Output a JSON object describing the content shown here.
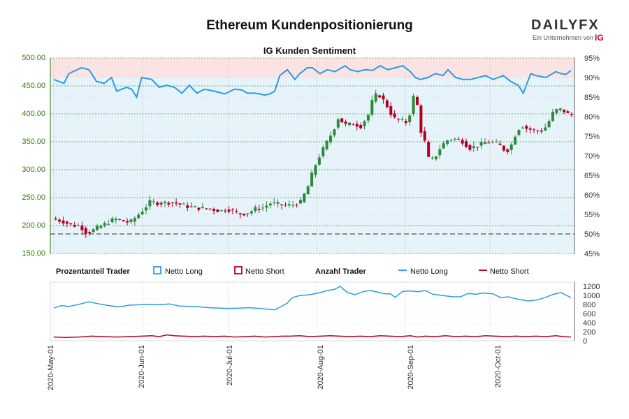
{
  "header": {
    "title": "Ethereum Kundenpositionierung",
    "logo_text": "DAILYFX",
    "logo_sub": "Ein Unternehmen von",
    "logo_ig": "IG"
  },
  "chart_data": [
    {
      "type": "candlestick",
      "title": "IG Kunden Sentiment",
      "ylim": [
        150,
        500
      ],
      "y_ticks": [
        "500.00",
        "450.00",
        "400.00",
        "350.00",
        "300.00",
        "250.00",
        "200.00",
        "150.00"
      ],
      "y2_ticks": [
        "95%",
        "90%",
        "85%",
        "80%",
        "75%",
        "70%",
        "65%",
        "60%",
        "55%",
        "50%",
        "45%"
      ],
      "y2lim": [
        45,
        95
      ],
      "x_labels": [
        "2020-May-01",
        "2020-Jun-01",
        "2020-Jul-01",
        "2020-Aug-01",
        "2020-Sep-01",
        "2020-Oct-01"
      ],
      "price_points": [
        [
          0,
          212
        ],
        [
          8,
          208
        ],
        [
          16,
          200
        ],
        [
          22,
          200
        ],
        [
          28,
          186
        ],
        [
          38,
          198
        ],
        [
          50,
          212
        ],
        [
          62,
          205
        ],
        [
          70,
          222
        ],
        [
          78,
          242
        ],
        [
          86,
          240
        ],
        [
          95,
          242
        ],
        [
          102,
          238
        ],
        [
          110,
          233
        ],
        [
          118,
          231
        ],
        [
          126,
          230
        ],
        [
          134,
          226
        ],
        [
          140,
          230
        ],
        [
          148,
          221
        ],
        [
          156,
          222
        ],
        [
          162,
          230
        ],
        [
          168,
          232
        ],
        [
          174,
          240
        ],
        [
          180,
          238
        ],
        [
          186,
          236
        ],
        [
          192,
          237
        ],
        [
          198,
          242
        ],
        [
          204,
          270
        ],
        [
          208,
          298
        ],
        [
          212,
          320
        ],
        [
          218,
          345
        ],
        [
          224,
          370
        ],
        [
          228,
          392
        ],
        [
          234,
          380
        ],
        [
          240,
          382
        ],
        [
          246,
          378
        ],
        [
          252,
          398
        ],
        [
          256,
          430
        ],
        [
          260,
          436
        ],
        [
          266,
          418
        ],
        [
          272,
          392
        ],
        [
          278,
          388
        ],
        [
          282,
          385
        ],
        [
          285,
          400
        ],
        [
          288,
          430
        ],
        [
          290,
          452
        ],
        [
          292,
          378
        ],
        [
          296,
          360
        ],
        [
          300,
          320
        ],
        [
          304,
          318
        ],
        [
          310,
          342
        ],
        [
          316,
          355
        ],
        [
          322,
          355
        ],
        [
          328,
          350
        ],
        [
          332,
          338
        ],
        [
          338,
          342
        ],
        [
          344,
          348
        ],
        [
          350,
          350
        ],
        [
          356,
          345
        ],
        [
          362,
          332
        ],
        [
          366,
          345
        ],
        [
          370,
          368
        ],
        [
          374,
          380
        ],
        [
          378,
          374
        ],
        [
          384,
          370
        ],
        [
          390,
          370
        ],
        [
          394,
          378
        ],
        [
          400,
          406
        ],
        [
          406,
          408
        ],
        [
          412,
          398
        ]
      ],
      "sentiment_long_pct": [
        [
          0,
          89.5
        ],
        [
          8,
          88.5
        ],
        [
          12,
          91
        ],
        [
          22,
          92.5
        ],
        [
          28,
          92
        ],
        [
          34,
          89
        ],
        [
          40,
          88.5
        ],
        [
          46,
          90
        ],
        [
          50,
          86.5
        ],
        [
          58,
          87.5
        ],
        [
          62,
          87
        ],
        [
          66,
          85
        ],
        [
          70,
          90
        ],
        [
          78,
          89.5
        ],
        [
          84,
          87.5
        ],
        [
          90,
          88
        ],
        [
          96,
          87.5
        ],
        [
          102,
          86
        ],
        [
          108,
          88
        ],
        [
          114,
          86
        ],
        [
          120,
          87
        ],
        [
          128,
          86.5
        ],
        [
          136,
          85.8
        ],
        [
          144,
          87
        ],
        [
          150,
          86.8
        ],
        [
          154,
          86
        ],
        [
          160,
          86
        ],
        [
          164,
          85.8
        ],
        [
          168,
          85.5
        ],
        [
          172,
          85.8
        ],
        [
          176,
          86.5
        ],
        [
          180,
          90.5
        ],
        [
          186,
          92
        ],
        [
          192,
          89.5
        ],
        [
          196,
          91
        ],
        [
          202,
          92.5
        ],
        [
          206,
          92.5
        ],
        [
          212,
          91
        ],
        [
          218,
          92
        ],
        [
          224,
          91.5
        ],
        [
          232,
          93
        ],
        [
          236,
          92
        ],
        [
          242,
          91.5
        ],
        [
          248,
          92
        ],
        [
          254,
          91.8
        ],
        [
          260,
          93
        ],
        [
          266,
          92
        ],
        [
          272,
          92.5
        ],
        [
          278,
          93
        ],
        [
          284,
          91.5
        ],
        [
          288,
          90
        ],
        [
          292,
          89.5
        ],
        [
          298,
          90
        ],
        [
          304,
          91
        ],
        [
          310,
          90.5
        ],
        [
          314,
          92
        ],
        [
          320,
          90
        ],
        [
          326,
          89.5
        ],
        [
          332,
          89.5
        ],
        [
          338,
          90
        ],
        [
          344,
          90.5
        ],
        [
          350,
          89.5
        ],
        [
          354,
          90
        ],
        [
          358,
          90.5
        ],
        [
          364,
          89
        ],
        [
          370,
          88
        ],
        [
          374,
          86
        ],
        [
          380,
          91
        ],
        [
          384,
          90.5
        ],
        [
          392,
          90
        ],
        [
          400,
          91.5
        ],
        [
          404,
          91
        ],
        [
          408,
          90.8
        ],
        [
          412,
          91.8
        ]
      ],
      "count_long": [
        [
          0,
          780
        ],
        [
          6,
          840
        ],
        [
          12,
          820
        ],
        [
          20,
          870
        ],
        [
          28,
          930
        ],
        [
          36,
          880
        ],
        [
          44,
          840
        ],
        [
          52,
          810
        ],
        [
          60,
          850
        ],
        [
          68,
          860
        ],
        [
          76,
          870
        ],
        [
          84,
          860
        ],
        [
          92,
          880
        ],
        [
          100,
          830
        ],
        [
          108,
          820
        ],
        [
          116,
          810
        ],
        [
          124,
          790
        ],
        [
          132,
          780
        ],
        [
          140,
          770
        ],
        [
          148,
          780
        ],
        [
          156,
          790
        ],
        [
          164,
          770
        ],
        [
          172,
          750
        ],
        [
          176,
          740
        ],
        [
          180,
          800
        ],
        [
          186,
          900
        ],
        [
          190,
          1030
        ],
        [
          196,
          1080
        ],
        [
          204,
          1100
        ],
        [
          212,
          1150
        ],
        [
          218,
          1200
        ],
        [
          224,
          1230
        ],
        [
          228,
          1300
        ],
        [
          234,
          1150
        ],
        [
          240,
          1100
        ],
        [
          246,
          1170
        ],
        [
          252,
          1200
        ],
        [
          258,
          1160
        ],
        [
          264,
          1120
        ],
        [
          268,
          1120
        ],
        [
          272,
          1040
        ],
        [
          278,
          1180
        ],
        [
          284,
          1190
        ],
        [
          290,
          1170
        ],
        [
          296,
          1200
        ],
        [
          302,
          1110
        ],
        [
          310,
          1080
        ],
        [
          318,
          1050
        ],
        [
          324,
          1050
        ],
        [
          330,
          1130
        ],
        [
          336,
          1110
        ],
        [
          342,
          1140
        ],
        [
          346,
          1130
        ],
        [
          350,
          1120
        ],
        [
          356,
          1030
        ],
        [
          362,
          1050
        ],
        [
          370,
          990
        ],
        [
          378,
          950
        ],
        [
          386,
          980
        ],
        [
          392,
          1040
        ],
        [
          398,
          1110
        ],
        [
          404,
          1150
        ],
        [
          412,
          1030
        ]
      ],
      "count_short": [
        [
          0,
          90
        ],
        [
          10,
          80
        ],
        [
          20,
          90
        ],
        [
          30,
          110
        ],
        [
          40,
          100
        ],
        [
          50,
          90
        ],
        [
          60,
          100
        ],
        [
          70,
          110
        ],
        [
          78,
          120
        ],
        [
          84,
          100
        ],
        [
          90,
          140
        ],
        [
          96,
          120
        ],
        [
          104,
          110
        ],
        [
          112,
          100
        ],
        [
          120,
          110
        ],
        [
          128,
          100
        ],
        [
          136,
          110
        ],
        [
          144,
          90
        ],
        [
          152,
          100
        ],
        [
          160,
          110
        ],
        [
          168,
          90
        ],
        [
          176,
          100
        ],
        [
          182,
          110
        ],
        [
          188,
          110
        ],
        [
          196,
          120
        ],
        [
          204,
          100
        ],
        [
          212,
          110
        ],
        [
          220,
          120
        ],
        [
          228,
          110
        ],
        [
          236,
          100
        ],
        [
          244,
          110
        ],
        [
          252,
          100
        ],
        [
          260,
          120
        ],
        [
          268,
          110
        ],
        [
          276,
          100
        ],
        [
          284,
          120
        ],
        [
          290,
          90
        ],
        [
          296,
          110
        ],
        [
          304,
          100
        ],
        [
          312,
          120
        ],
        [
          320,
          100
        ],
        [
          328,
          110
        ],
        [
          336,
          100
        ],
        [
          344,
          120
        ],
        [
          352,
          110
        ],
        [
          360,
          100
        ],
        [
          368,
          110
        ],
        [
          376,
          100
        ],
        [
          384,
          110
        ],
        [
          392,
          100
        ],
        [
          400,
          120
        ],
        [
          406,
          100
        ],
        [
          412,
          90
        ]
      ],
      "y3lim": [
        0,
        1300
      ],
      "y3_ticks": [
        "1200",
        "1000",
        "800",
        "600",
        "400",
        "200",
        "0"
      ],
      "legend": {
        "pct_title": "Prozentanteil Trader",
        "pct_long": "Netto Long",
        "pct_short": "Netto Short",
        "count_title": "Anzahl Trader",
        "count_long": "Netto Long",
        "count_short": "Netto Short"
      },
      "colors": {
        "long": "#2b9be6",
        "short": "#c0001b",
        "up": "#2c8a3a",
        "down": "#b3001f",
        "axis_left": "#3a7a0a"
      }
    }
  ]
}
